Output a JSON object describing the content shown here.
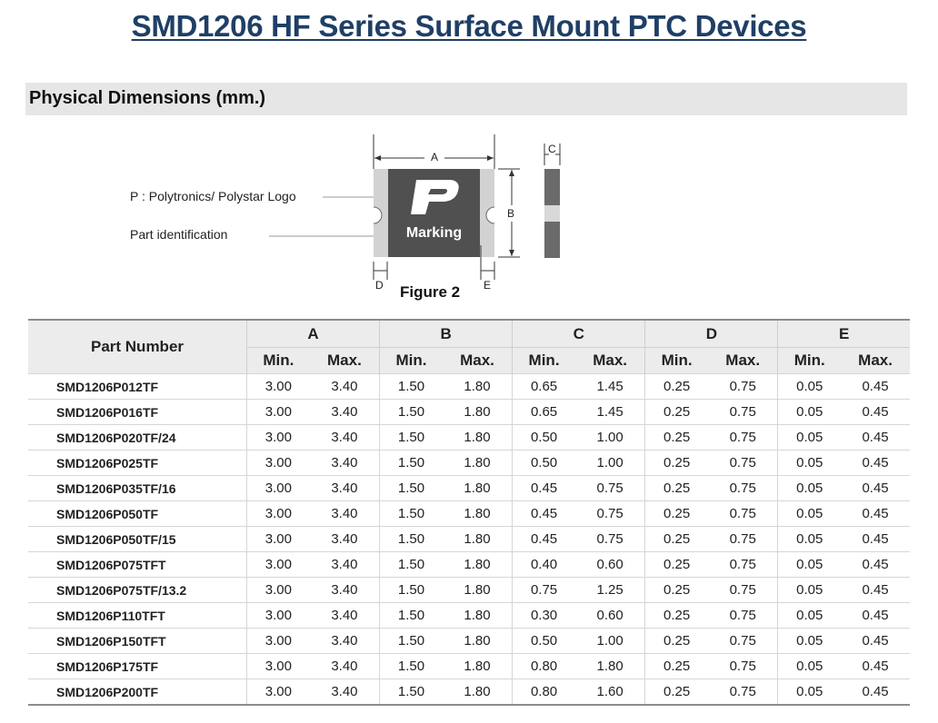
{
  "title": "SMD1206 HF Series Surface Mount PTC Devices",
  "section_title": "Physical Dimensions (mm.)",
  "figure": {
    "caption": "Figure 2",
    "callouts": {
      "logo": "P : Polytronics/ Polystar Logo",
      "part_id": "Part identification"
    },
    "logo_letter": "P",
    "marking_text": "Marking",
    "dimension_labels": {
      "a": "A",
      "b": "B",
      "c": "C",
      "d": "D",
      "e": "E"
    }
  },
  "table": {
    "part_number_header": "Part Number",
    "groups": [
      "A",
      "B",
      "C",
      "D",
      "E"
    ],
    "min_label": "Min.",
    "max_label": "Max.",
    "rows": [
      {
        "part": "SMD1206P012TF",
        "values": [
          "3.00",
          "3.40",
          "1.50",
          "1.80",
          "0.65",
          "1.45",
          "0.25",
          "0.75",
          "0.05",
          "0.45"
        ]
      },
      {
        "part": "SMD1206P016TF",
        "values": [
          "3.00",
          "3.40",
          "1.50",
          "1.80",
          "0.65",
          "1.45",
          "0.25",
          "0.75",
          "0.05",
          "0.45"
        ]
      },
      {
        "part": "SMD1206P020TF/24",
        "values": [
          "3.00",
          "3.40",
          "1.50",
          "1.80",
          "0.50",
          "1.00",
          "0.25",
          "0.75",
          "0.05",
          "0.45"
        ]
      },
      {
        "part": "SMD1206P025TF",
        "values": [
          "3.00",
          "3.40",
          "1.50",
          "1.80",
          "0.50",
          "1.00",
          "0.25",
          "0.75",
          "0.05",
          "0.45"
        ]
      },
      {
        "part": "SMD1206P035TF/16",
        "values": [
          "3.00",
          "3.40",
          "1.50",
          "1.80",
          "0.45",
          "0.75",
          "0.25",
          "0.75",
          "0.05",
          "0.45"
        ]
      },
      {
        "part": "SMD1206P050TF",
        "values": [
          "3.00",
          "3.40",
          "1.50",
          "1.80",
          "0.45",
          "0.75",
          "0.25",
          "0.75",
          "0.05",
          "0.45"
        ]
      },
      {
        "part": "SMD1206P050TF/15",
        "values": [
          "3.00",
          "3.40",
          "1.50",
          "1.80",
          "0.45",
          "0.75",
          "0.25",
          "0.75",
          "0.05",
          "0.45"
        ]
      },
      {
        "part": "SMD1206P075TFT",
        "values": [
          "3.00",
          "3.40",
          "1.50",
          "1.80",
          "0.40",
          "0.60",
          "0.25",
          "0.75",
          "0.05",
          "0.45"
        ]
      },
      {
        "part": "SMD1206P075TF/13.2",
        "values": [
          "3.00",
          "3.40",
          "1.50",
          "1.80",
          "0.75",
          "1.25",
          "0.25",
          "0.75",
          "0.05",
          "0.45"
        ]
      },
      {
        "part": "SMD1206P110TFT",
        "values": [
          "3.00",
          "3.40",
          "1.50",
          "1.80",
          "0.30",
          "0.60",
          "0.25",
          "0.75",
          "0.05",
          "0.45"
        ]
      },
      {
        "part": "SMD1206P150TFT",
        "values": [
          "3.00",
          "3.40",
          "1.50",
          "1.80",
          "0.50",
          "1.00",
          "0.25",
          "0.75",
          "0.05",
          "0.45"
        ]
      },
      {
        "part": "SMD1206P175TF",
        "values": [
          "3.00",
          "3.40",
          "1.50",
          "1.80",
          "0.80",
          "1.80",
          "0.25",
          "0.75",
          "0.05",
          "0.45"
        ]
      },
      {
        "part": "SMD1206P200TF",
        "values": [
          "3.00",
          "3.40",
          "1.50",
          "1.80",
          "0.80",
          "1.60",
          "0.25",
          "0.75",
          "0.05",
          "0.45"
        ]
      }
    ]
  },
  "colors": {
    "title": "#1f3f66",
    "body_dark": "#505050",
    "terminal": "#d2d2d2",
    "header_bg": "#ececec"
  }
}
